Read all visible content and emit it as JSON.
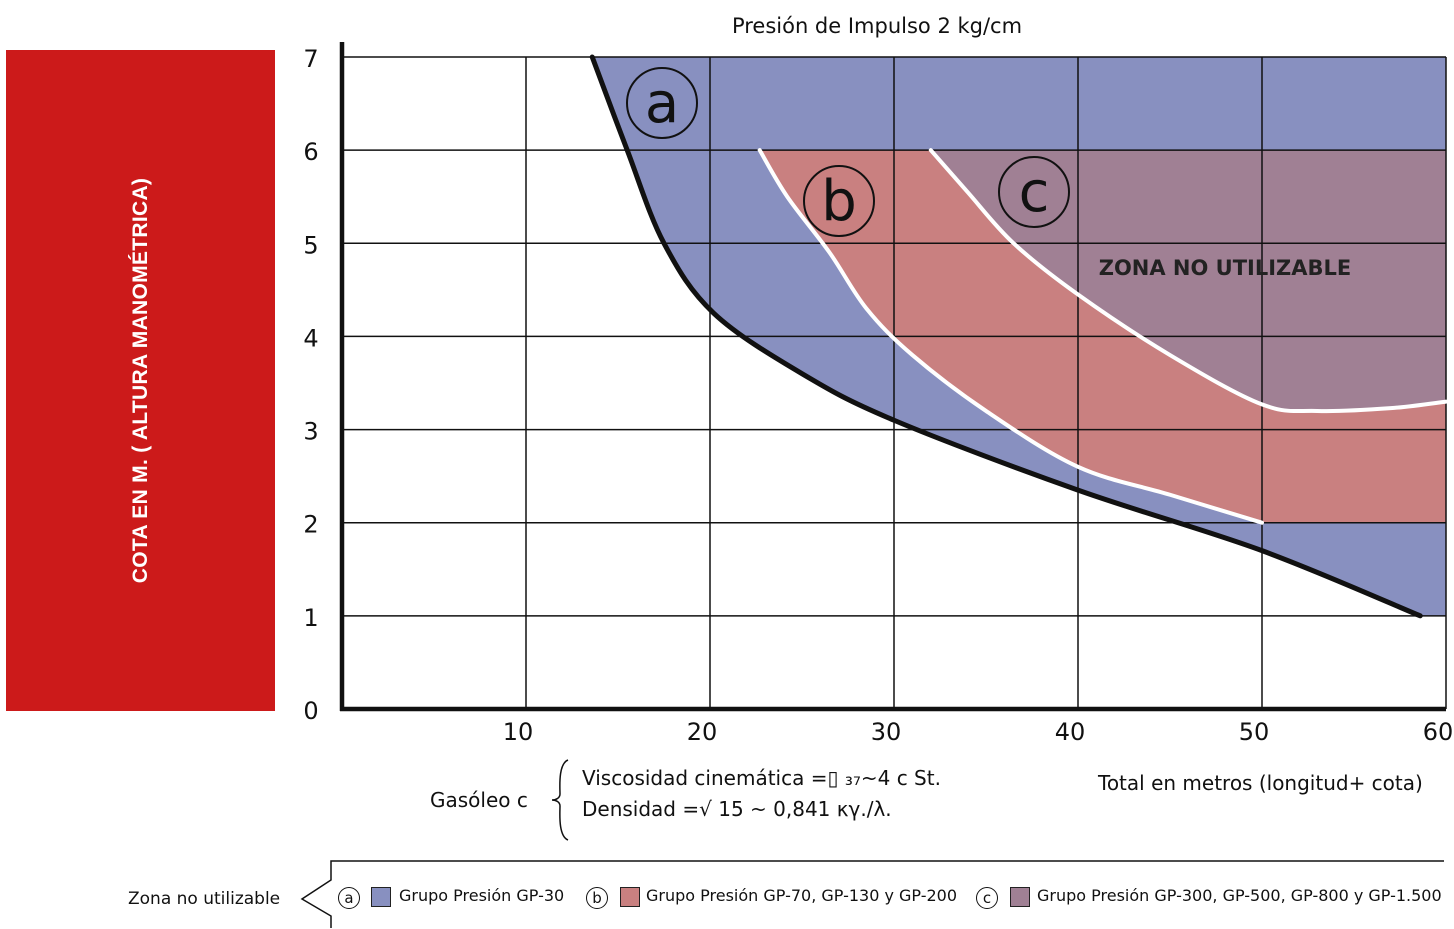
{
  "chart_data": {
    "type": "area",
    "title": "Presión de Impulso 2 kg/cm",
    "ylabel": "COTA EN M. ( ALTURA MANOMÉTRICA)",
    "xlabel": "Total en metros (longitud+ cota)",
    "xlim": [
      0,
      60
    ],
    "ylim": [
      0,
      7
    ],
    "x_ticks": [
      "10",
      "20",
      "30",
      "40",
      "50",
      "60"
    ],
    "y_ticks": [
      "0",
      "1",
      "2",
      "3",
      "4",
      "5",
      "6",
      "7"
    ],
    "grid": true,
    "series": [
      {
        "key": "a",
        "letter": "a",
        "color": "#8890c0",
        "boundary": [
          [
            13.6,
            7
          ],
          [
            15.5,
            6
          ],
          [
            17.5,
            5
          ],
          [
            20.2,
            4.25
          ],
          [
            25,
            3.6
          ],
          [
            30,
            3.1
          ],
          [
            40,
            2.35
          ],
          [
            50,
            1.7
          ],
          [
            58.6,
            1.0
          ]
        ],
        "top": 7,
        "xmax": 60,
        "floor": 1
      },
      {
        "key": "b",
        "letter": "b",
        "color": "#c98080",
        "boundary": [
          [
            22.7,
            6
          ],
          [
            24.2,
            5.5
          ],
          [
            26.5,
            4.9
          ],
          [
            28.5,
            4.3
          ],
          [
            31,
            3.8
          ],
          [
            35,
            3.2
          ],
          [
            40,
            2.6
          ],
          [
            45,
            2.3
          ],
          [
            50,
            2.0
          ]
        ],
        "top": 6,
        "xmax": 60,
        "floor": 2
      },
      {
        "key": "c",
        "letter": "c",
        "color": "#a08094",
        "boundary": [
          [
            32,
            6
          ],
          [
            34,
            5.55
          ],
          [
            36.5,
            5.0
          ],
          [
            40,
            4.45
          ],
          [
            45,
            3.8
          ],
          [
            50,
            3.27
          ],
          [
            53,
            3.2
          ],
          [
            57,
            3.23
          ],
          [
            60,
            3.3
          ]
        ],
        "top": 6,
        "xmax": 60,
        "floor": null
      }
    ],
    "annotations": [
      "ZONA NO UTILIZABLE"
    ]
  },
  "note": {
    "label": "Gasóleo c",
    "line1": "Viscosidad cinemática  =▯   ₃₇~4 c St.",
    "line2": "Densidad  =√ 15 ~ 0,841 κγ./λ."
  },
  "legend": {
    "title": "Zona no utilizable",
    "items": [
      {
        "letter": "a",
        "color": "#8890c0",
        "label": "Grupo Presión GP-30"
      },
      {
        "letter": "b",
        "color": "#c98080",
        "label": "Grupo Presión GP-70, GP-130 y GP-200"
      },
      {
        "letter": "c",
        "color": "#a08094",
        "label": "Grupo Presión GP-300, GP-500, GP-800 y GP-1.500"
      }
    ]
  }
}
